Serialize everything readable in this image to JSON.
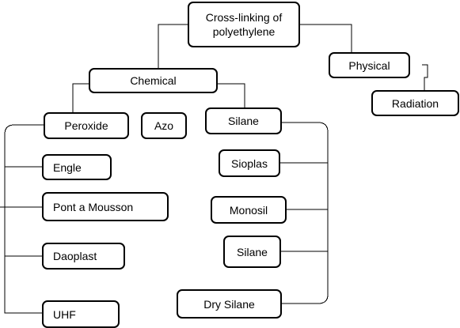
{
  "diagram": {
    "root": {
      "line1": "Cross-linking of",
      "line2": "polyethylene"
    },
    "physical": "Physical",
    "radiation": "Radiation",
    "chemical": "Chemical",
    "peroxide": "Peroxide",
    "azo": "Azo",
    "silane_group": "Silane",
    "peroxide_children": [
      "Engle",
      "Pont a Mousson",
      "Daoplast",
      "UHF"
    ],
    "silane_children": [
      "Sioplas",
      "Monosil",
      "Silane",
      "Dry Silane"
    ]
  }
}
